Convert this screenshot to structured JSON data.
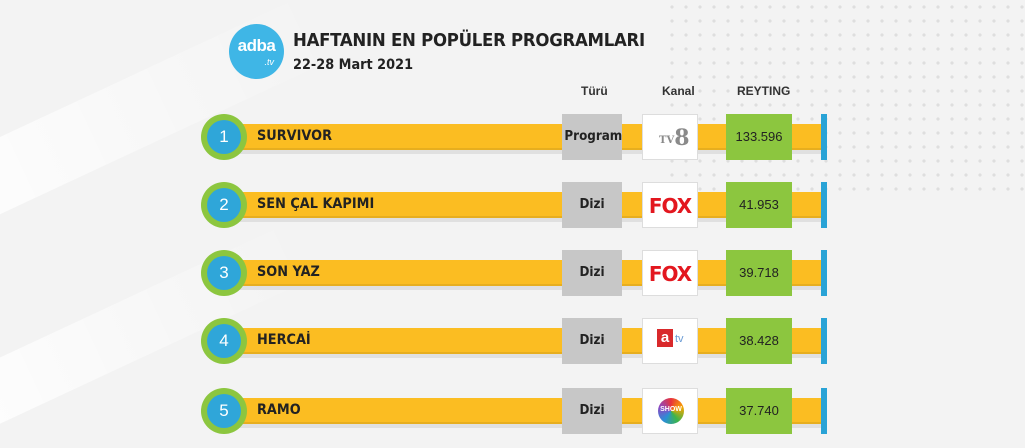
{
  "brand": {
    "logo_text": "adba",
    "logo_sub": ".tv"
  },
  "header": {
    "title": "HAFTANIN EN POPÜLER PROGRAMLARI",
    "date": "22-28 Mart 2021"
  },
  "columns": {
    "type": "Türü",
    "channel": "Kanal",
    "rating": "REYTING"
  },
  "colors": {
    "bar": "#fbbd22",
    "circle_outer": "#8cc63f",
    "circle_inner": "#2fa6d9",
    "rating_box": "#8cc63f",
    "type_box": "#c7c7c7",
    "endcap": "#29a3d6"
  },
  "rows": [
    {
      "rank": "1",
      "name": "SURVIVOR",
      "type": "Program",
      "channel": "tv8",
      "rating": "133.596"
    },
    {
      "rank": "2",
      "name": "SEN ÇAL KAPIMI",
      "type": "Dizi",
      "channel": "FOX",
      "rating": "41.953"
    },
    {
      "rank": "3",
      "name": "SON YAZ",
      "type": "Dizi",
      "channel": "FOX",
      "rating": "39.718"
    },
    {
      "rank": "4",
      "name": "HERCAİ",
      "type": "Dizi",
      "channel": "atv",
      "rating": "38.428"
    },
    {
      "rank": "5",
      "name": "RAMO",
      "type": "Dizi",
      "channel": "SHOW",
      "rating": "37.740"
    }
  ]
}
